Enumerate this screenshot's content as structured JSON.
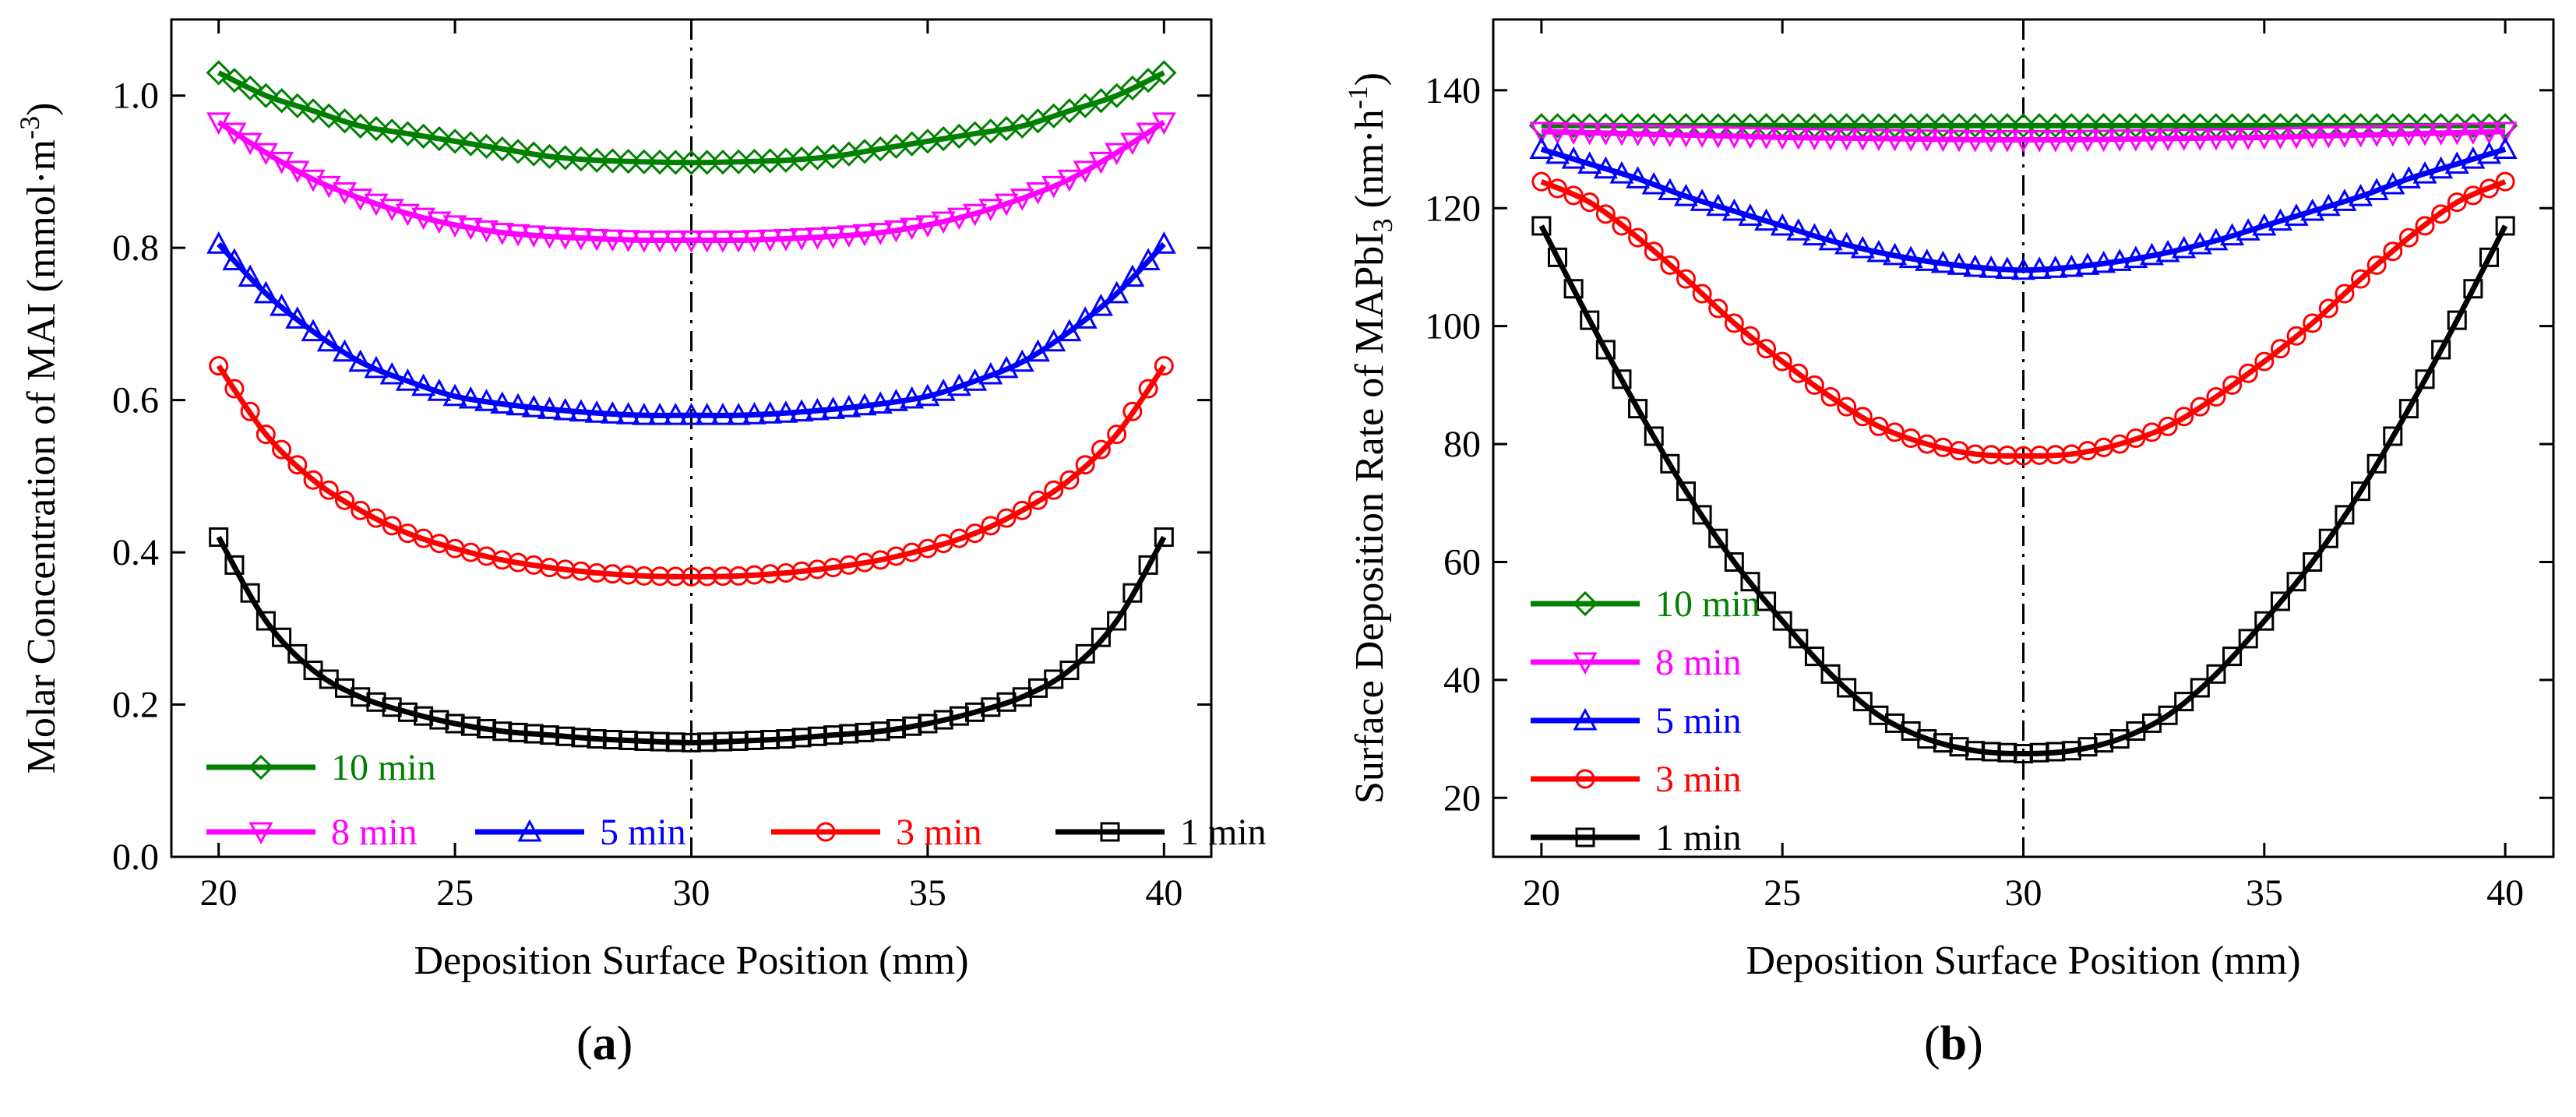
{
  "captions": [
    "a",
    "b"
  ],
  "chart_data": [
    {
      "panel": "a",
      "type": "line",
      "title": "",
      "xlabel": "Deposition Surface Position (mm)",
      "ylabel": "Molar Concentration of MAI (mmol·m",
      "ylabel_sup": "-3",
      "ylabel_end": ")",
      "xlim": [
        19,
        41
      ],
      "ylim": [
        0.0,
        1.1
      ],
      "xticks": [
        20,
        25,
        30,
        35,
        40
      ],
      "yticks": [
        0.0,
        0.2,
        0.4,
        0.6,
        0.8,
        1.0
      ],
      "ytick_labels": [
        "0.0",
        "0.2",
        "0.4",
        "0.6",
        "0.8",
        "1.0"
      ],
      "grid": false,
      "reference_line_x": 30,
      "legend_location": "bottom",
      "x": [
        20,
        21,
        22,
        23,
        24,
        25,
        26,
        27,
        28,
        29,
        30,
        31,
        32,
        33,
        34,
        35,
        36,
        37,
        38,
        39,
        40
      ],
      "series": [
        {
          "name": "10 min",
          "color": "#008000",
          "marker": "diamond",
          "values": [
            1.03,
            1.0,
            0.98,
            0.96,
            0.95,
            0.94,
            0.93,
            0.92,
            0.915,
            0.913,
            0.912,
            0.913,
            0.915,
            0.92,
            0.93,
            0.94,
            0.95,
            0.96,
            0.98,
            1.0,
            1.03
          ]
        },
        {
          "name": "8 min",
          "color": "#ff00ff",
          "marker": "triangle-down",
          "values": [
            0.965,
            0.925,
            0.89,
            0.865,
            0.845,
            0.83,
            0.82,
            0.815,
            0.812,
            0.81,
            0.81,
            0.81,
            0.812,
            0.815,
            0.82,
            0.83,
            0.845,
            0.865,
            0.89,
            0.925,
            0.965
          ]
        },
        {
          "name": "5 min",
          "color": "#0000ff",
          "marker": "triangle-up",
          "values": [
            0.805,
            0.74,
            0.69,
            0.65,
            0.625,
            0.605,
            0.595,
            0.588,
            0.583,
            0.58,
            0.58,
            0.58,
            0.583,
            0.588,
            0.595,
            0.605,
            0.625,
            0.65,
            0.69,
            0.74,
            0.805
          ]
        },
        {
          "name": "3 min",
          "color": "#ff0000",
          "marker": "circle",
          "values": [
            0.645,
            0.555,
            0.495,
            0.455,
            0.425,
            0.405,
            0.39,
            0.38,
            0.373,
            0.369,
            0.368,
            0.369,
            0.373,
            0.38,
            0.39,
            0.405,
            0.425,
            0.455,
            0.495,
            0.555,
            0.645
          ]
        },
        {
          "name": "1 min",
          "color": "#000000",
          "marker": "square",
          "values": [
            0.42,
            0.31,
            0.245,
            0.21,
            0.19,
            0.175,
            0.165,
            0.16,
            0.155,
            0.152,
            0.15,
            0.152,
            0.155,
            0.16,
            0.165,
            0.175,
            0.19,
            0.21,
            0.245,
            0.31,
            0.42
          ]
        }
      ],
      "legend": [
        "10 min",
        "8 min",
        "5 min",
        "3 min",
        "1 min"
      ]
    },
    {
      "panel": "b",
      "type": "line",
      "title": "",
      "xlabel": "Deposition Surface Position (mm)",
      "ylabel": "Surface Deposition Rate of MAPbI",
      "ylabel_sub": "3",
      "ylabel_unit": " (nm·h",
      "ylabel_sup": "-1",
      "ylabel_end": ")",
      "xlim": [
        19,
        41
      ],
      "ylim": [
        10,
        152
      ],
      "xticks": [
        20,
        25,
        30,
        35,
        40
      ],
      "yticks": [
        20,
        40,
        60,
        80,
        100,
        120,
        140
      ],
      "ytick_labels": [
        "20",
        "40",
        "60",
        "80",
        "100",
        "120",
        "140"
      ],
      "grid": false,
      "reference_line_x": 30,
      "legend_location": "bottom-left",
      "x": [
        20,
        21,
        22,
        23,
        24,
        25,
        26,
        27,
        28,
        29,
        30,
        31,
        32,
        33,
        34,
        35,
        36,
        37,
        38,
        39,
        40
      ],
      "series": [
        {
          "name": "10 min",
          "color": "#008000",
          "marker": "diamond",
          "values": [
            134,
            134,
            134,
            134,
            134,
            134,
            134,
            134,
            134,
            134,
            134,
            134,
            134,
            134,
            134,
            134,
            134,
            134,
            134,
            134,
            134
          ]
        },
        {
          "name": "8 min",
          "color": "#ff00ff",
          "marker": "triangle-down",
          "values": [
            133,
            132.8,
            132.6,
            132.4,
            132.2,
            132,
            131.9,
            131.8,
            131.7,
            131.6,
            131.6,
            131.6,
            131.7,
            131.8,
            131.9,
            132,
            132.2,
            132.4,
            132.6,
            132.8,
            133
          ]
        },
        {
          "name": "5 min",
          "color": "#0000ff",
          "marker": "triangle-up",
          "values": [
            130,
            127.5,
            125,
            122,
            119.5,
            117,
            114.5,
            112.5,
            111,
            110,
            109.5,
            110,
            111,
            112.5,
            114.5,
            117,
            119.5,
            122,
            125,
            127.5,
            130
          ]
        },
        {
          "name": "3 min",
          "color": "#ff0000",
          "marker": "circle",
          "values": [
            124.5,
            121,
            115,
            108,
            100.5,
            94,
            88,
            83,
            80,
            78.3,
            78,
            78.3,
            80,
            83,
            88,
            94,
            100.5,
            108,
            115,
            121,
            124.5
          ]
        },
        {
          "name": "1 min",
          "color": "#000000",
          "marker": "square",
          "values": [
            117,
            101,
            86,
            72,
            60,
            50,
            41,
            34,
            30,
            28,
            27.5,
            28,
            30,
            34,
            41,
            50,
            60,
            72,
            86,
            101,
            117
          ]
        }
      ],
      "legend": [
        "10 min",
        "8 min",
        "5 min",
        "3 min",
        "1 min"
      ]
    }
  ]
}
